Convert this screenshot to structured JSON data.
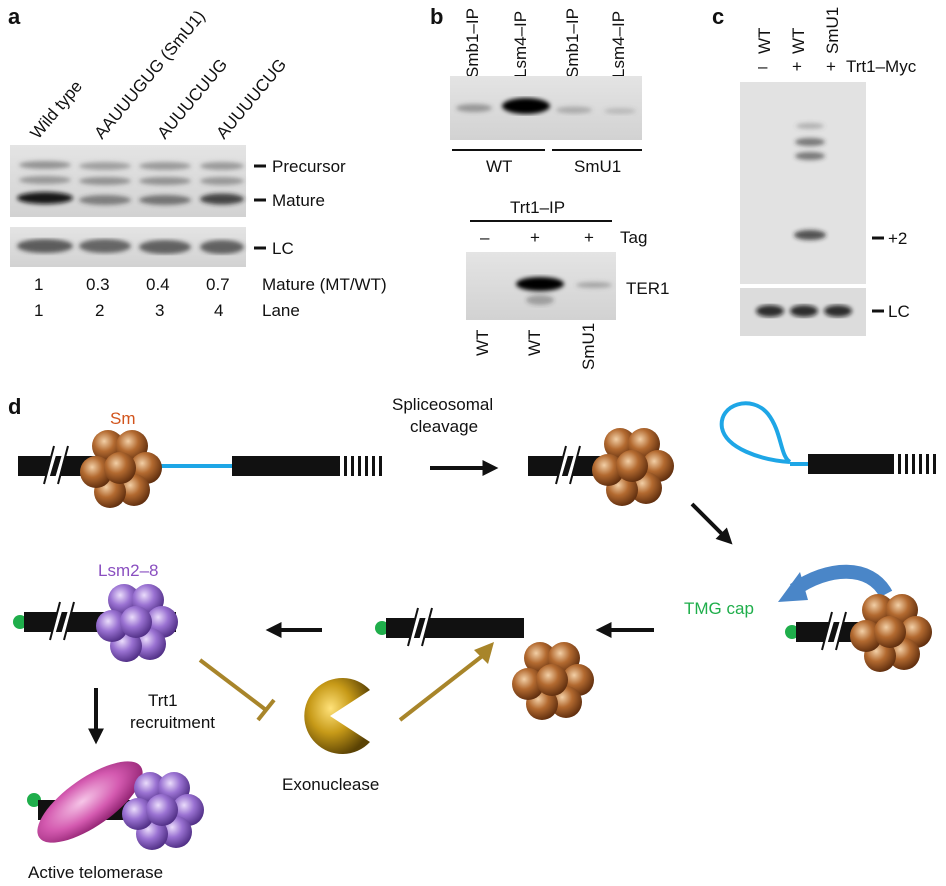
{
  "panel_a": {
    "letter": "a",
    "lane_headers": [
      "Wild type",
      "AAUUUGUG (SmU1)",
      "AUUUCUUG",
      "AUUUUCUG"
    ],
    "band_labels": {
      "precursor": "Precursor",
      "mature": "Mature",
      "lc": "LC"
    },
    "mature_label": "Mature (MT/WT)",
    "mature_values": [
      "1",
      "0.3",
      "0.4",
      "0.7"
    ],
    "lane_label": "Lane",
    "lane_numbers": [
      "1",
      "2",
      "3",
      "4"
    ]
  },
  "panel_b": {
    "letter": "b",
    "top_headers": [
      "Smb1–IP",
      "Lsm4–IP",
      "Smb1–IP",
      "Lsm4–IP"
    ],
    "groups": [
      "WT",
      "SmU1"
    ],
    "ip_label": "Trt1–IP",
    "tag_signs": [
      "–",
      "+",
      "+"
    ],
    "tag_label": "Tag",
    "band_label": "TER1",
    "bottom_labels": [
      "WT",
      "WT",
      "SmU1"
    ]
  },
  "panel_c": {
    "letter": "c",
    "headers": [
      "WT",
      "WT",
      "SmU1"
    ],
    "signs": [
      "–",
      "+",
      "+"
    ],
    "myc_label": "Trt1–Myc",
    "band_label": "+2",
    "lc_label": "LC"
  },
  "panel_d": {
    "letter": "d",
    "sm_label": "Sm",
    "cleavage_label_line1": "Spliceosomal",
    "cleavage_label_line2": "cleavage",
    "tmg_label": "TMG cap",
    "lsm_label": "Lsm2–8",
    "trt1_line1": "Trt1",
    "trt1_line2": "recruitment",
    "exonuclease_label": "Exonuclease",
    "active_label": "Active telomerase"
  },
  "colors": {
    "rna_black": "#111111",
    "intron_blue": "#1ea6e6",
    "sm_brown": "#8b4a1c",
    "lsm_purple": "#8a5cc2",
    "tmg_green": "#1fae4b",
    "exonuclease_gold": "#b08a1a",
    "arrow_blue": "#4a86c8",
    "telomerase_magenta": "#c0389a",
    "sm_text": "#d2541c",
    "lsm_text": "#8a4fc0"
  }
}
